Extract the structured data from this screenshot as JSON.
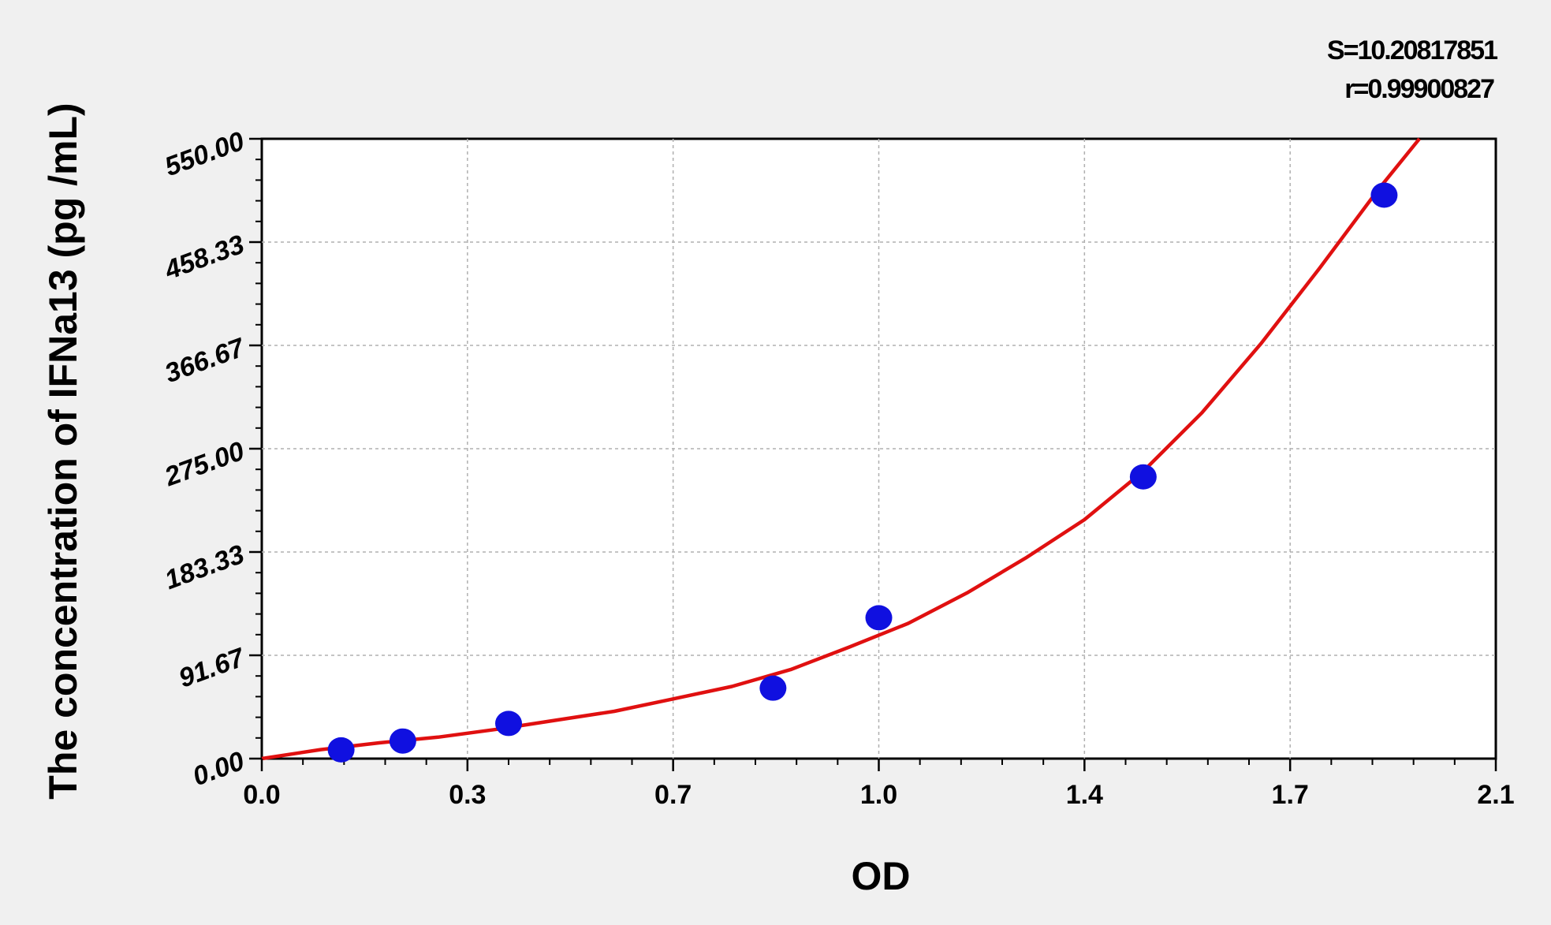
{
  "chart_data": {
    "type": "scatter",
    "title": "",
    "xlabel": "OD",
    "ylabel": "The concentration of IFNa13 (pg /mL)",
    "xlim": [
      0.0,
      2.1
    ],
    "ylim": [
      0.0,
      550.0
    ],
    "x_ticks": [
      0.0,
      0.35,
      0.7,
      1.05,
      1.4,
      1.75,
      2.1
    ],
    "x_tick_labels": [
      "0.0",
      "0.3",
      "0.7",
      "1.0",
      "1.4",
      "1.7",
      "2.1"
    ],
    "y_ticks": [
      0,
      91.67,
      183.33,
      275,
      366.67,
      458.33,
      550
    ],
    "y_tick_labels": [
      "0.00",
      "91.67",
      "183.33",
      "275.00",
      "366.67",
      "458.33",
      "550.00"
    ],
    "grid": true,
    "series": [
      {
        "type": "scatter",
        "color": "#1010e0",
        "points": [
          {
            "x": 0.135,
            "y": 7.8
          },
          {
            "x": 0.24,
            "y": 15.6
          },
          {
            "x": 0.42,
            "y": 31.2
          },
          {
            "x": 0.87,
            "y": 62.5
          },
          {
            "x": 1.05,
            "y": 125
          },
          {
            "x": 1.5,
            "y": 250
          },
          {
            "x": 1.91,
            "y": 500
          }
        ]
      },
      {
        "type": "line",
        "color": "#e01010",
        "x": [
          0.0,
          0.1,
          0.2,
          0.3,
          0.4,
          0.5,
          0.6,
          0.7,
          0.8,
          0.9,
          1.0,
          1.1,
          1.2,
          1.3,
          1.4,
          1.5,
          1.6,
          1.7,
          1.8,
          1.9,
          1.97
        ],
        "y": [
          0,
          8,
          14,
          19,
          26,
          34,
          42,
          53,
          64,
          79,
          99,
          120,
          147,
          178,
          212,
          255,
          307,
          368,
          435,
          505,
          550
        ]
      }
    ],
    "annotations": [
      "S=10.20817851",
      "r=0.99900827"
    ]
  }
}
